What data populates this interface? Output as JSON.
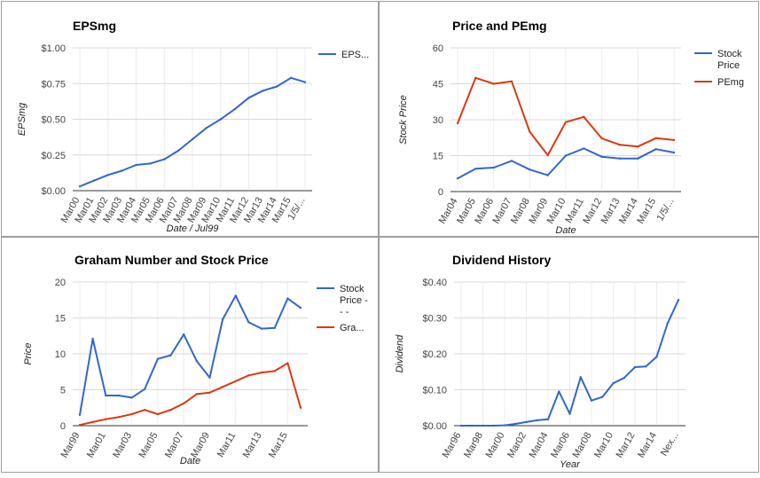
{
  "chart_data": [
    {
      "type": "line",
      "title": "EPSmg",
      "xlabel": "Date / Jul99",
      "ylabel": "EPSmg",
      "ylim": [
        0,
        1
      ],
      "yticks": [
        "$0.00",
        "$0.25",
        "$0.50",
        "$0.75",
        "$1.00"
      ],
      "ytick_values": [
        0,
        0.25,
        0.5,
        0.75,
        1
      ],
      "categories": [
        "Mar00",
        "Mar01",
        "Mar02",
        "Mar03",
        "Mar04",
        "Mar05",
        "Mar06",
        "Mar07",
        "Mar08",
        "Mar09",
        "Mar10",
        "Mar11",
        "Mar12",
        "Mar13",
        "Mar14",
        "Mar15",
        "1/5/..."
      ],
      "series": [
        {
          "name": "EPS...",
          "color": "#3366cc",
          "values": [
            0.03,
            0.07,
            0.11,
            0.14,
            0.18,
            0.19,
            0.22,
            0.28,
            0.36,
            0.44,
            0.5,
            0.57,
            0.65,
            0.7,
            0.73,
            0.79,
            0.76
          ]
        }
      ],
      "legend": "right",
      "grid": true
    },
    {
      "type": "line",
      "title": "Price and PEmg",
      "xlabel": "Date",
      "ylabel": "Stock Price",
      "ylim": [
        0,
        60
      ],
      "yticks": [
        "0",
        "15",
        "30",
        "45",
        "60"
      ],
      "ytick_values": [
        0,
        15,
        30,
        45,
        60
      ],
      "categories": [
        "Mar04",
        "Mar05",
        "Mar06",
        "Mar07",
        "Mar08",
        "Mar09",
        "Mar10",
        "Mar11",
        "Mar12",
        "Mar13",
        "Mar14",
        "Mar15",
        "1/5/..."
      ],
      "series": [
        {
          "name": "Stock Price",
          "color": "#3366cc",
          "values": [
            5.5,
            9.5,
            10,
            12.8,
            9.2,
            6.8,
            15,
            18,
            14.5,
            13.8,
            13.8,
            17.7,
            16.3
          ]
        },
        {
          "name": "PEmg",
          "color": "#dc3912",
          "values": [
            28.5,
            47.5,
            45,
            46,
            25,
            15.2,
            29,
            31.2,
            22.2,
            19.5,
            18.8,
            22.3,
            21.5
          ]
        }
      ],
      "legend": "right",
      "grid": true
    },
    {
      "type": "line",
      "title": "Graham Number and Stock Price",
      "xlabel": "Date",
      "ylabel": "Price",
      "ylim": [
        0,
        20
      ],
      "yticks": [
        "0",
        "5",
        "10",
        "15",
        "20"
      ],
      "ytick_values": [
        0,
        5,
        10,
        15,
        20
      ],
      "categories": [
        "Mar99",
        "",
        "Mar01",
        "",
        "Mar03",
        "",
        "Mar05",
        "",
        "Mar07",
        "",
        "Mar09",
        "",
        "Mar11",
        "",
        "Mar13",
        "",
        "Mar15",
        ""
      ],
      "series": [
        {
          "name": "Stock Price - - -",
          "color": "#3366cc",
          "values": [
            1.5,
            12.1,
            4.2,
            4.2,
            3.9,
            5.1,
            9.3,
            9.8,
            12.7,
            9.0,
            6.7,
            14.8,
            18.1,
            14.4,
            13.5,
            13.6,
            17.7,
            16.4
          ]
        },
        {
          "name": "Gra...",
          "color": "#dc3912",
          "values": [
            0.1,
            0.5,
            0.9,
            1.2,
            1.6,
            2.2,
            1.6,
            2.2,
            3.1,
            4.4,
            4.6,
            5.4,
            6.2,
            7.0,
            7.4,
            7.6,
            8.7,
            2.5
          ]
        }
      ],
      "legend": "right",
      "grid": true
    },
    {
      "type": "line",
      "title": "Dividend History",
      "xlabel": "Year",
      "ylabel": "Dividend",
      "ylim": [
        0,
        0.4
      ],
      "yticks": [
        "$0.00",
        "$0.10",
        "$0.20",
        "$0.30",
        "$0.40"
      ],
      "ytick_values": [
        0,
        0.1,
        0.2,
        0.3,
        0.4
      ],
      "categories": [
        "Mar96",
        "",
        "Mar98",
        "",
        "Mar00",
        "",
        "Mar02",
        "",
        "Mar04",
        "",
        "Mar06",
        "",
        "Mar08",
        "",
        "Mar10",
        "",
        "Mar12",
        "",
        "Mar14",
        "",
        "Nex..."
      ],
      "series": [
        {
          "name": "Dividend",
          "color": "#3366cc",
          "values": [
            0.0,
            0.0,
            0.0,
            0.0,
            0.001,
            0.005,
            0.01,
            0.015,
            0.018,
            0.095,
            0.033,
            0.135,
            0.07,
            0.08,
            0.118,
            0.133,
            0.163,
            0.165,
            0.192,
            0.285,
            0.35
          ]
        }
      ],
      "legend": "none",
      "grid": true
    }
  ]
}
